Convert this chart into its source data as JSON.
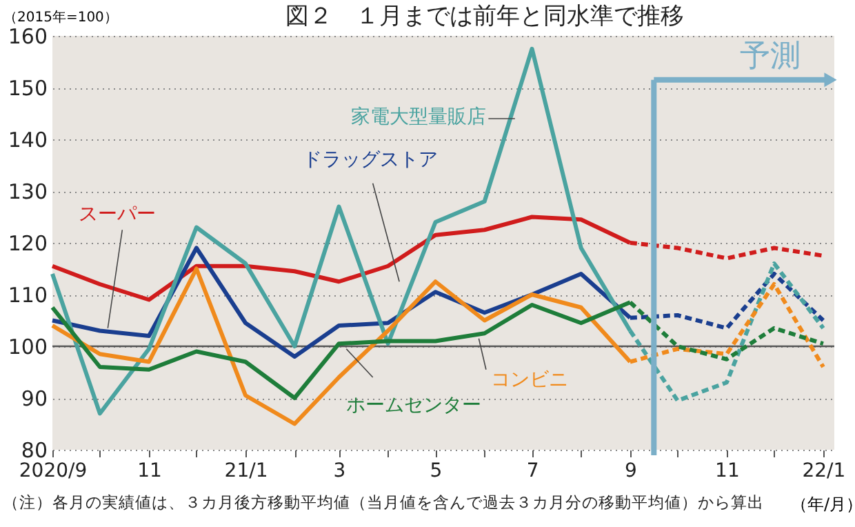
{
  "chart_data": {
    "type": "line",
    "title": "図２　１月までは前年と同水準で推移",
    "ylabel": "（2015年=100）",
    "xlabel": "（年/月）",
    "x": [
      "2020-09",
      "2020-10",
      "2020-11",
      "2020-12",
      "2021-01",
      "2021-02",
      "2021-03",
      "2021-04",
      "2021-05",
      "2021-06",
      "2021-07",
      "2021-08",
      "2021-09"
    ],
    "series": [
      {
        "name": "スーパー",
        "color": "#d01c1c",
        "values": [
          115.5,
          112,
          109,
          115.5,
          115.5,
          114.5,
          112.5,
          115.5,
          121.5,
          122.5,
          125,
          124.5,
          120
        ]
      },
      {
        "name": "ドラッグストア",
        "color": "#1a3e8f",
        "values": [
          105,
          103,
          102,
          119,
          104.5,
          98,
          104,
          104.5,
          110.5,
          106.5,
          110,
          114,
          105.5
        ]
      },
      {
        "name": "家電大型量販店",
        "color": "#4aa3a0",
        "values": [
          114,
          87,
          99.5,
          123,
          116,
          100,
          127,
          100.5,
          124,
          128,
          157.5,
          119,
          103
        ]
      },
      {
        "name": "コンビニ",
        "color": "#f08a1c",
        "values": [
          104,
          98.5,
          97,
          115,
          90.5,
          85,
          94,
          103,
          112.5,
          105,
          110,
          107.5,
          97
        ]
      },
      {
        "name": "ホームセンター",
        "color": "#1e7d3a",
        "values": [
          107.5,
          96,
          95.5,
          99,
          97,
          90,
          100.5,
          101,
          101,
          102.5,
          108,
          104.5,
          108.5
        ]
      },
      {
        "color": "#d01c1c",
        "line_style": "dashed",
        "x": [
          "2021-09",
          "2021-10",
          "2021-11",
          "2021-12",
          "2022-01"
        ],
        "values": [
          120,
          119,
          117,
          119,
          117.5
        ]
      },
      {
        "color": "#1a3e8f",
        "line_style": "dashed",
        "x": [
          "2021-09",
          "2021-10",
          "2021-11",
          "2021-12",
          "2022-01"
        ],
        "values": [
          105.5,
          106,
          103.5,
          114,
          105
        ]
      },
      {
        "color": "#4aa3a0",
        "line_style": "dashed",
        "x": [
          "2021-09",
          "2021-10",
          "2021-11",
          "2021-12",
          "2022-01"
        ],
        "values": [
          103,
          89.5,
          93,
          116,
          103.5
        ]
      },
      {
        "color": "#f08a1c",
        "line_style": "dashed",
        "x": [
          "2021-09",
          "2021-10",
          "2021-11",
          "2021-12",
          "2022-01"
        ],
        "values": [
          97,
          99.5,
          98.5,
          112,
          96
        ]
      },
      {
        "color": "#1e7d3a",
        "line_style": "dashed",
        "x": [
          "2021-09",
          "2021-10",
          "2021-11",
          "2021-12",
          "2022-01"
        ],
        "values": [
          108.5,
          100,
          97.5,
          103.5,
          100.5
        ]
      }
    ],
    "line_style": "solid",
    "xlim": [
      "2020-09",
      "2022-01-08"
    ],
    "xticks": [
      {
        "value": "2020-09",
        "label": "2020/9"
      },
      {
        "value": "2020-10",
        "label": null
      },
      {
        "value": "2020-11",
        "label": "11"
      },
      {
        "value": "2020-12",
        "label": null
      },
      {
        "value": "2021-01",
        "label": "21/1"
      },
      {
        "value": "2021-02",
        "label": null
      },
      {
        "value": "2021-03",
        "label": "3"
      },
      {
        "value": "2021-04",
        "label": null
      },
      {
        "value": "2021-05",
        "label": "5"
      },
      {
        "value": "2021-06",
        "label": null
      },
      {
        "value": "2021-07",
        "label": "7"
      },
      {
        "value": "2021-08",
        "label": null
      },
      {
        "value": "2021-09",
        "label": "9"
      },
      {
        "value": "2021-10",
        "label": null
      },
      {
        "value": "2021-11",
        "label": "11"
      },
      {
        "value": "2021-12",
        "label": null
      },
      {
        "value": "2022-01",
        "label": "22/1"
      }
    ],
    "ylim": [
      80,
      160
    ],
    "yticks": [
      80,
      90,
      100,
      110,
      120,
      130,
      140,
      150,
      160
    ],
    "grid": "y",
    "legend": false,
    "ref_lines": [
      {
        "axis": "y",
        "value": 100,
        "color": "#555555"
      },
      {
        "axis": "x",
        "value": "2021-09-16",
        "label": "予測",
        "color": "#7bafc8"
      }
    ],
    "annotations": [
      "（注）各月の実績値は、３カ月後方移動平均値（当月値を含んで過去３カ月分の移動平均値）から算出"
    ]
  }
}
